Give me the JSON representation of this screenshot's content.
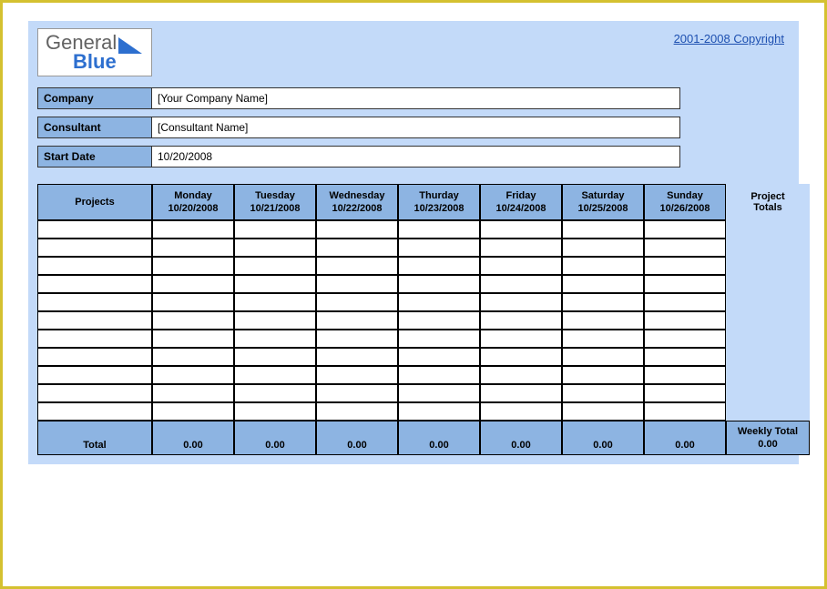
{
  "colors": {
    "page_border": "#d4c130",
    "sheet_bg": "#c3daf9",
    "header_cell_bg": "#8db4e2",
    "cell_bg": "#ffffff",
    "grid_border": "#000000",
    "link_color": "#1c4fb0",
    "logo_gray": "#636363",
    "logo_blue": "#2d6fcf"
  },
  "logo": {
    "word1": "General",
    "word2": "Blue"
  },
  "copyright": "2001-2008 Copyright",
  "info": {
    "company_label": "Company",
    "company_value": "[Your Company Name]",
    "consultant_label": "Consultant",
    "consultant_value": "[Consultant Name]",
    "startdate_label": "Start Date",
    "startdate_value": "10/20/2008"
  },
  "table": {
    "projects_header": "Projects",
    "project_totals_header": "Project\nTotals",
    "days": [
      {
        "name": "Monday",
        "date": "10/20/2008"
      },
      {
        "name": "Tuesday",
        "date": "10/21/2008"
      },
      {
        "name": "Wednesday",
        "date": "10/22/2008"
      },
      {
        "name": "Thurday",
        "date": "10/23/2008"
      },
      {
        "name": "Friday",
        "date": "10/24/2008"
      },
      {
        "name": "Saturday",
        "date": "10/25/2008"
      },
      {
        "name": "Sunday",
        "date": "10/26/2008"
      }
    ],
    "body_row_count": 11,
    "footer": {
      "total_label": "Total",
      "weekly_total_label": "Weekly Total",
      "day_totals": [
        "0.00",
        "0.00",
        "0.00",
        "0.00",
        "0.00",
        "0.00",
        "0.00"
      ],
      "weekly_total_value": "0.00"
    }
  }
}
